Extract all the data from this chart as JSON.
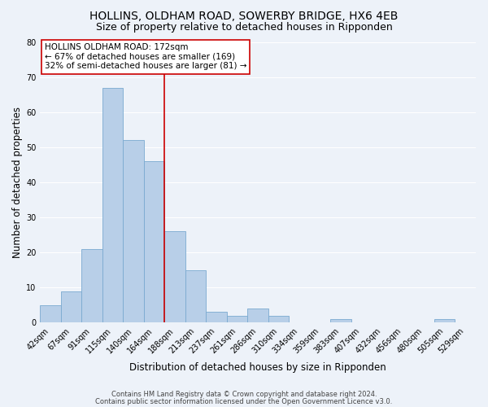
{
  "title": "HOLLINS, OLDHAM ROAD, SOWERBY BRIDGE, HX6 4EB",
  "subtitle": "Size of property relative to detached houses in Ripponden",
  "xlabel": "Distribution of detached houses by size in Ripponden",
  "ylabel": "Number of detached properties",
  "bar_labels": [
    "42sqm",
    "67sqm",
    "91sqm",
    "115sqm",
    "140sqm",
    "164sqm",
    "188sqm",
    "213sqm",
    "237sqm",
    "261sqm",
    "286sqm",
    "310sqm",
    "334sqm",
    "359sqm",
    "383sqm",
    "407sqm",
    "432sqm",
    "456sqm",
    "480sqm",
    "505sqm",
    "529sqm"
  ],
  "bar_values": [
    5,
    9,
    21,
    67,
    52,
    46,
    26,
    15,
    3,
    2,
    4,
    2,
    0,
    0,
    1,
    0,
    0,
    0,
    0,
    1,
    0
  ],
  "bar_color": "#b8cfe8",
  "bar_edge_color": "#7aaad0",
  "vline_x": 5.5,
  "vline_color": "#cc0000",
  "ylim": [
    0,
    80
  ],
  "yticks": [
    0,
    10,
    20,
    30,
    40,
    50,
    60,
    70,
    80
  ],
  "annotation_text": "HOLLINS OLDHAM ROAD: 172sqm\n← 67% of detached houses are smaller (169)\n32% of semi-detached houses are larger (81) →",
  "annotation_box_color": "#ffffff",
  "annotation_box_edge": "#cc0000",
  "footer_line1": "Contains HM Land Registry data © Crown copyright and database right 2024.",
  "footer_line2": "Contains public sector information licensed under the Open Government Licence v3.0.",
  "background_color": "#edf2f9",
  "grid_color": "#ffffff",
  "title_fontsize": 10,
  "subtitle_fontsize": 9,
  "axis_label_fontsize": 8.5,
  "tick_fontsize": 7,
  "annotation_fontsize": 7.5,
  "footer_fontsize": 6
}
